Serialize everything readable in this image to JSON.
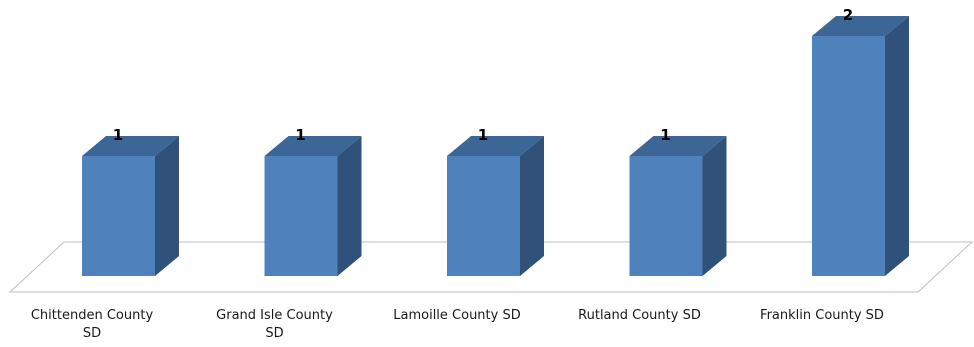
{
  "chart_data": {
    "type": "bar",
    "style": "3d-column",
    "categories": [
      "Chittenden County SD",
      "Grand Isle County SD",
      "Lamoille County SD",
      "Rutland County SD",
      "Franklin County SD"
    ],
    "values": [
      1,
      1,
      1,
      1,
      2
    ],
    "data_labels": [
      "1",
      "1",
      "1",
      "1",
      "2"
    ],
    "title": "",
    "xlabel": "",
    "ylabel": "",
    "ylim": [
      0,
      2
    ],
    "grid": false,
    "legend": "none",
    "colors": {
      "front": "#4F81BD",
      "side": "#30527A",
      "top": "#3C6696",
      "floor_line": "#BFBFBF"
    }
  }
}
